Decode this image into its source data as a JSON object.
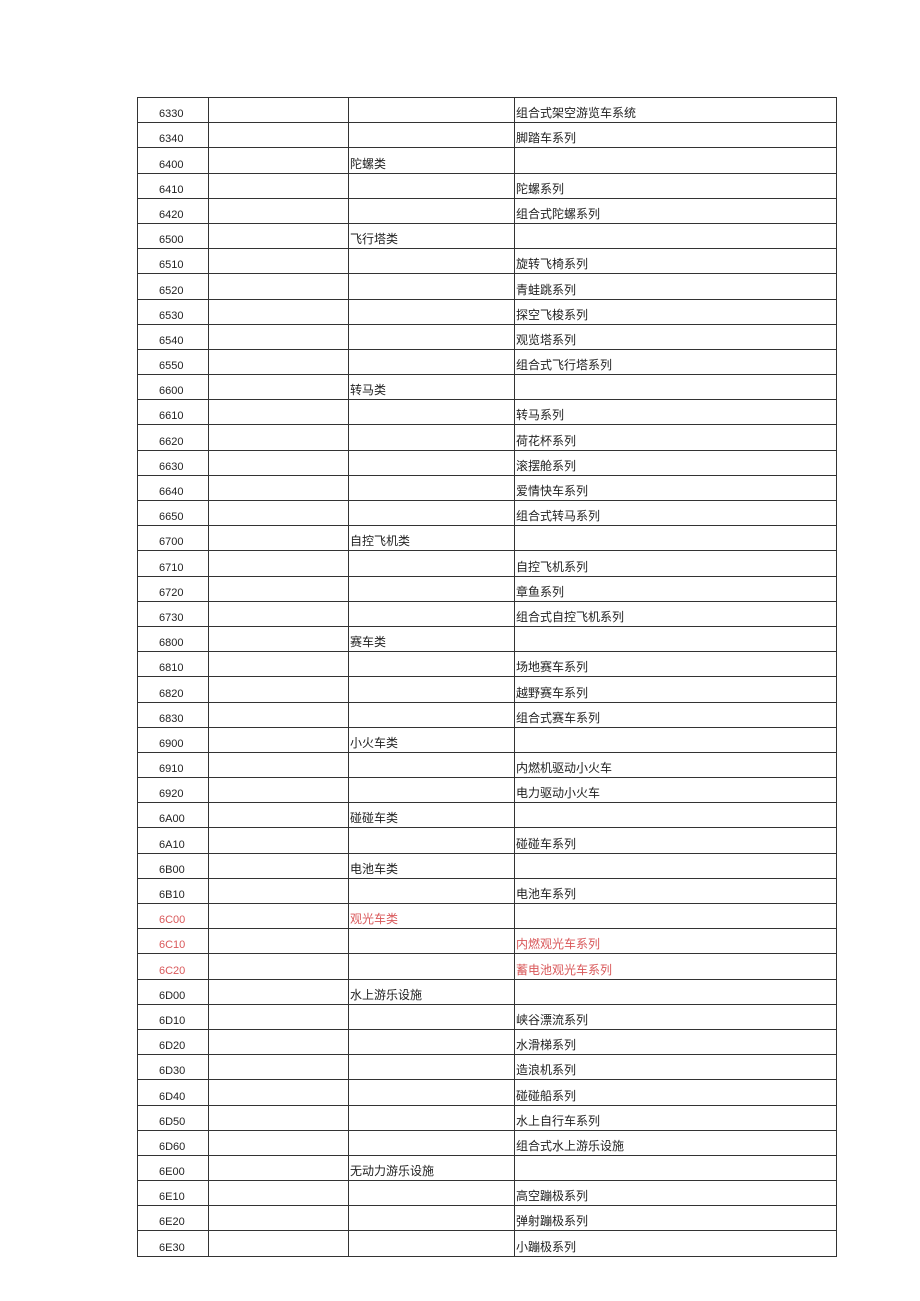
{
  "colors": {
    "text": "#222222",
    "highlight": "#d9585a",
    "border": "#333333"
  },
  "rows": [
    {
      "code": "6330",
      "category": "",
      "item": "组合式架空游览车系统"
    },
    {
      "code": "6340",
      "category": "",
      "item": "脚踏车系列"
    },
    {
      "code": "6400",
      "category": "陀螺类",
      "item": ""
    },
    {
      "code": "6410",
      "category": "",
      "item": "陀螺系列"
    },
    {
      "code": "6420",
      "category": "",
      "item": "组合式陀螺系列"
    },
    {
      "code": "6500",
      "category": "飞行塔类",
      "item": ""
    },
    {
      "code": "6510",
      "category": "",
      "item": "旋转飞椅系列"
    },
    {
      "code": "6520",
      "category": "",
      "item": "青蛙跳系列"
    },
    {
      "code": "6530",
      "category": "",
      "item": "探空飞梭系列"
    },
    {
      "code": "6540",
      "category": "",
      "item": "观览塔系列"
    },
    {
      "code": "6550",
      "category": "",
      "item": "组合式飞行塔系列"
    },
    {
      "code": "6600",
      "category": "转马类",
      "item": ""
    },
    {
      "code": "6610",
      "category": "",
      "item": "转马系列"
    },
    {
      "code": "6620",
      "category": "",
      "item": "荷花杯系列"
    },
    {
      "code": "6630",
      "category": "",
      "item": "滚摆舱系列"
    },
    {
      "code": "6640",
      "category": "",
      "item": "爱情快车系列"
    },
    {
      "code": "6650",
      "category": "",
      "item": "组合式转马系列"
    },
    {
      "code": "6700",
      "category": "自控飞机类",
      "item": ""
    },
    {
      "code": "6710",
      "category": "",
      "item": "自控飞机系列"
    },
    {
      "code": "6720",
      "category": "",
      "item": "章鱼系列"
    },
    {
      "code": "6730",
      "category": "",
      "item": "组合式自控飞机系列"
    },
    {
      "code": "6800",
      "category": "赛车类",
      "item": ""
    },
    {
      "code": "6810",
      "category": "",
      "item": "场地赛车系列"
    },
    {
      "code": "6820",
      "category": "",
      "item": "越野赛车系列"
    },
    {
      "code": "6830",
      "category": "",
      "item": "组合式赛车系列"
    },
    {
      "code": "6900",
      "category": "小火车类",
      "item": ""
    },
    {
      "code": "6910",
      "category": "",
      "item": "内燃机驱动小火车"
    },
    {
      "code": "6920",
      "category": "",
      "item": "电力驱动小火车"
    },
    {
      "code": "6A00",
      "category": "碰碰车类",
      "item": ""
    },
    {
      "code": "6A10",
      "category": "",
      "item": "碰碰车系列"
    },
    {
      "code": "6B00",
      "category": "电池车类",
      "item": ""
    },
    {
      "code": "6B10",
      "category": "",
      "item": "电池车系列"
    },
    {
      "code": "6C00",
      "category": "观光车类",
      "item": "",
      "highlight": true
    },
    {
      "code": "6C10",
      "category": "",
      "item": "内燃观光车系列",
      "highlight": true
    },
    {
      "code": "6C20",
      "category": "",
      "item": "蓄电池观光车系列",
      "highlight": true
    },
    {
      "code": "6D00",
      "category": "水上游乐设施",
      "item": ""
    },
    {
      "code": "6D10",
      "category": "",
      "item": "峡谷漂流系列"
    },
    {
      "code": "6D20",
      "category": "",
      "item": "水滑梯系列"
    },
    {
      "code": "6D30",
      "category": "",
      "item": "造浪机系列"
    },
    {
      "code": "6D40",
      "category": "",
      "item": "碰碰船系列"
    },
    {
      "code": "6D50",
      "category": "",
      "item": "水上自行车系列"
    },
    {
      "code": "6D60",
      "category": "",
      "item": "组合式水上游乐设施"
    },
    {
      "code": "6E00",
      "category": "无动力游乐设施",
      "item": ""
    },
    {
      "code": "6E10",
      "category": "",
      "item": "高空蹦极系列"
    },
    {
      "code": "6E20",
      "category": "",
      "item": "弹射蹦极系列"
    },
    {
      "code": "6E30",
      "category": "",
      "item": "小蹦极系列"
    }
  ]
}
